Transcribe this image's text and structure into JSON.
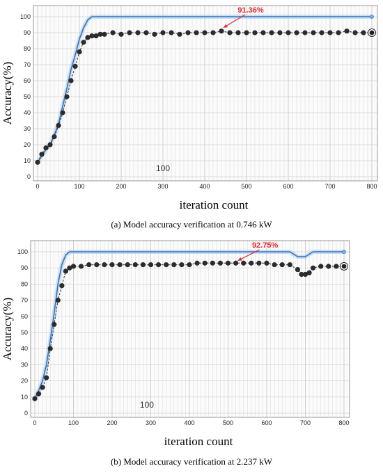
{
  "chart_data": [
    {
      "type": "line",
      "panel": "a",
      "caption": "(a) Model accuracy verification at 0.746 kW",
      "xlabel": "iteration count",
      "ylabel": "Accuracy(%)",
      "xlim": [
        0,
        800
      ],
      "ylim": [
        0,
        100
      ],
      "xticks": [
        0,
        100,
        200,
        300,
        400,
        500,
        600,
        700,
        800
      ],
      "yticks": [
        0,
        10,
        20,
        30,
        40,
        50,
        60,
        70,
        80,
        90,
        100
      ],
      "mid_label": "100",
      "annotation": {
        "text": "91.36%",
        "x": 440,
        "y": 91.4
      },
      "grid": true,
      "colors": {
        "train": "#2f74c0",
        "validation": "#2b2b2b",
        "annotation": "#e02b2b"
      },
      "series": [
        {
          "style": "blue-line",
          "x": [
            0,
            10,
            20,
            30,
            40,
            50,
            60,
            70,
            80,
            90,
            100,
            110,
            120,
            130,
            140,
            200,
            300,
            400,
            500,
            600,
            700,
            800
          ],
          "y": [
            9,
            13,
            17,
            20,
            26,
            33,
            44,
            55,
            67,
            76,
            86,
            93,
            98,
            100,
            100,
            100,
            100,
            100,
            100,
            100,
            100,
            100
          ]
        },
        {
          "style": "black-dots",
          "x": [
            0,
            10,
            20,
            30,
            40,
            50,
            60,
            70,
            80,
            90,
            100,
            110,
            120,
            130,
            140,
            150,
            160,
            180,
            200,
            220,
            240,
            260,
            280,
            300,
            320,
            340,
            360,
            380,
            400,
            420,
            440,
            460,
            480,
            500,
            520,
            540,
            560,
            580,
            600,
            620,
            640,
            660,
            680,
            700,
            720,
            740,
            760,
            780,
            800
          ],
          "y": [
            9,
            14,
            18,
            20,
            25,
            32,
            40,
            50,
            60,
            69,
            78,
            84,
            87,
            88,
            88,
            89,
            89,
            90,
            89,
            90,
            90,
            90,
            89,
            90,
            90,
            89,
            90,
            90,
            90,
            90,
            91,
            90,
            90,
            90,
            90,
            90,
            90,
            90,
            90,
            90,
            90,
            90,
            90,
            90,
            90,
            91,
            90,
            90,
            90
          ]
        }
      ]
    },
    {
      "type": "line",
      "panel": "b",
      "caption": "(b) Model accuracy verification at 2.237 kW",
      "xlabel": "iteration count",
      "ylabel": "Accuracy(%)",
      "xlim": [
        0,
        800
      ],
      "ylim": [
        0,
        100
      ],
      "xticks": [
        0,
        100,
        200,
        300,
        400,
        500,
        600,
        700,
        800
      ],
      "yticks": [
        0,
        10,
        20,
        30,
        40,
        50,
        60,
        70,
        80,
        90,
        100
      ],
      "mid_label": "100",
      "annotation": {
        "text": "92.75%",
        "x": 520,
        "y": 92.8
      },
      "grid": true,
      "colors": {
        "train": "#2f74c0",
        "validation": "#2b2b2b",
        "annotation": "#e02b2b"
      },
      "series": [
        {
          "style": "blue-line",
          "x": [
            0,
            10,
            20,
            30,
            40,
            50,
            60,
            70,
            80,
            90,
            100,
            200,
            300,
            400,
            500,
            600,
            660,
            680,
            700,
            720,
            740,
            800
          ],
          "y": [
            9,
            14,
            20,
            30,
            45,
            62,
            80,
            92,
            98,
            100,
            100,
            100,
            100,
            100,
            100,
            100,
            100,
            97,
            97,
            100,
            100,
            100
          ]
        },
        {
          "style": "black-dots",
          "x": [
            0,
            10,
            20,
            30,
            40,
            50,
            60,
            70,
            80,
            90,
            100,
            120,
            140,
            160,
            180,
            200,
            220,
            240,
            260,
            280,
            300,
            320,
            340,
            360,
            380,
            400,
            420,
            440,
            460,
            480,
            500,
            520,
            540,
            560,
            580,
            600,
            620,
            640,
            660,
            680,
            690,
            700,
            710,
            720,
            740,
            760,
            780,
            800
          ],
          "y": [
            9,
            12,
            16,
            22,
            40,
            55,
            70,
            79,
            88,
            90,
            91,
            91,
            92,
            92,
            92,
            92,
            92,
            92,
            92,
            92,
            92,
            92,
            92,
            92,
            92,
            92,
            93,
            93,
            93,
            93,
            93,
            93,
            93,
            93,
            93,
            93,
            92,
            92,
            92,
            89,
            86,
            86,
            87,
            90,
            91,
            91,
            91,
            91
          ]
        }
      ]
    }
  ]
}
